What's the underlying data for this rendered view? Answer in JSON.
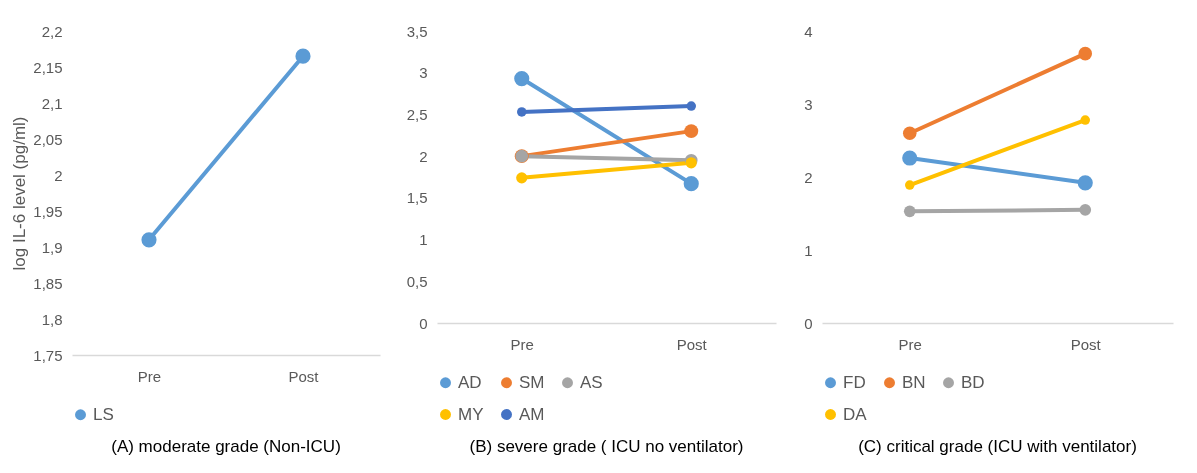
{
  "chart_data": [
    {
      "type": "line",
      "title": "(A) moderate grade (Non-ICU)",
      "ylabel": "log IL-6 level (pg/ml)",
      "categories": [
        "Pre",
        "Post"
      ],
      "series": [
        {
          "name": "LS",
          "color": "#5b9bd5",
          "values": [
            1.91,
            2.165
          ]
        }
      ],
      "ylim": [
        1.75,
        2.2
      ],
      "yticks": [
        {
          "value": 1.75,
          "label": "1,75"
        },
        {
          "value": 1.8,
          "label": "1,8"
        },
        {
          "value": 1.85,
          "label": "1,85"
        },
        {
          "value": 1.9,
          "label": "1,9"
        },
        {
          "value": 1.95,
          "label": "1,95"
        },
        2,
        {
          "value": 2.05,
          "label": "2,05"
        },
        {
          "value": 2.1,
          "label": "2,1"
        },
        {
          "value": 2.15,
          "label": "2,15"
        },
        {
          "value": 2.2,
          "label": "2,2"
        }
      ],
      "legend": "bottom",
      "marker": "circle"
    },
    {
      "type": "line",
      "title": "(B) severe grade ( ICU no ventilator)",
      "categories": [
        "Pre",
        "Post"
      ],
      "series": [
        {
          "name": "AD",
          "color": "#5b9bd5",
          "values": [
            2.93,
            1.67
          ]
        },
        {
          "name": "SM",
          "color": "#ed7d31",
          "values": [
            2.0,
            2.3
          ]
        },
        {
          "name": "AS",
          "color": "#a5a5a5",
          "values": [
            2.0,
            1.95
          ]
        },
        {
          "name": "MY",
          "color": "#ffc000",
          "values": [
            1.74,
            1.92
          ]
        },
        {
          "name": "AM",
          "color": "#4472c4",
          "values": [
            2.53,
            2.6
          ]
        }
      ],
      "ylim": [
        0,
        3.5
      ],
      "yticks": [
        0,
        {
          "value": 0.5,
          "label": "0,5"
        },
        1,
        {
          "value": 1.5,
          "label": "1,5"
        },
        2,
        {
          "value": 2.5,
          "label": "2,5"
        },
        3,
        {
          "value": 3.5,
          "label": "3,5"
        }
      ],
      "legend": "bottom",
      "marker": "circle"
    },
    {
      "type": "line",
      "title": "(C) critical grade (ICU with ventilator)",
      "categories": [
        "Pre",
        "Post"
      ],
      "series": [
        {
          "name": "FD",
          "color": "#5b9bd5",
          "values": [
            2.26,
            1.92
          ]
        },
        {
          "name": "BN",
          "color": "#ed7d31",
          "values": [
            2.6,
            3.69
          ]
        },
        {
          "name": "BD",
          "color": "#a5a5a5",
          "values": [
            1.53,
            1.55
          ]
        },
        {
          "name": "DA",
          "color": "#ffc000",
          "values": [
            1.89,
            2.78
          ]
        }
      ],
      "ylim": [
        0,
        4
      ],
      "yticks": [
        0,
        1,
        2,
        3,
        4
      ],
      "legend": "bottom",
      "marker": "circle"
    }
  ]
}
